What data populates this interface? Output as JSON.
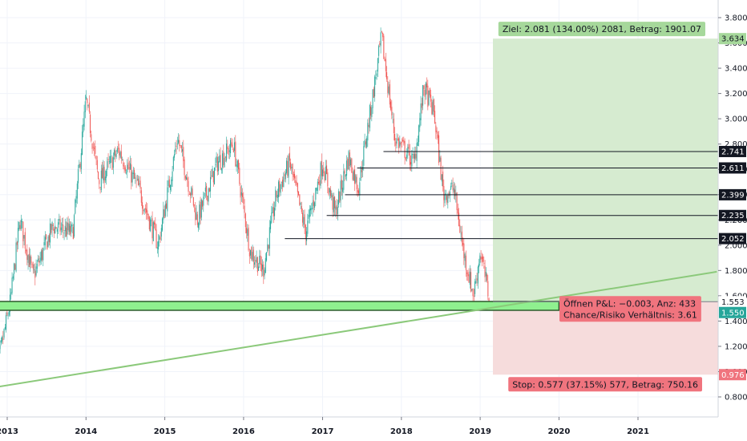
{
  "chart_data": {
    "type": "candlestick",
    "x_axis": {
      "labels": [
        "2013",
        "2014",
        "2015",
        "2016",
        "2017",
        "2018",
        "2019",
        "2020",
        "2021"
      ]
    },
    "y_axis": {
      "ticks": [
        "3.800",
        "3.600",
        "3.400",
        "3.200",
        "3.000",
        "2.800",
        "2.600",
        "2.400",
        "2.200",
        "2.000",
        "1.800",
        "1.600",
        "1.400",
        "1.200",
        "1.000",
        "0.800"
      ],
      "range": [
        0.7,
        3.85
      ]
    },
    "price_path": [
      [
        "2012-11-01",
        0.9
      ],
      [
        "2013-01-15",
        1.55
      ],
      [
        "2013-03-01",
        2.2
      ],
      [
        "2013-05-01",
        1.75
      ],
      [
        "2013-08-01",
        2.15
      ],
      [
        "2013-11-01",
        2.1
      ],
      [
        "2014-01-01",
        3.15
      ],
      [
        "2014-03-01",
        2.5
      ],
      [
        "2014-06-01",
        2.75
      ],
      [
        "2014-09-01",
        2.45
      ],
      [
        "2014-12-01",
        2.0
      ],
      [
        "2015-03-01",
        2.85
      ],
      [
        "2015-06-01",
        2.2
      ],
      [
        "2015-09-01",
        2.65
      ],
      [
        "2015-11-15",
        2.8
      ],
      [
        "2016-02-01",
        1.95
      ],
      [
        "2016-04-01",
        1.8
      ],
      [
        "2016-06-01",
        2.4
      ],
      [
        "2016-08-01",
        2.65
      ],
      [
        "2016-10-15",
        2.1
      ],
      [
        "2017-01-01",
        2.65
      ],
      [
        "2017-03-01",
        2.25
      ],
      [
        "2017-05-01",
        2.7
      ],
      [
        "2017-06-15",
        2.45
      ],
      [
        "2017-09-01",
        3.3
      ],
      [
        "2017-10-01",
        3.65
      ],
      [
        "2017-12-01",
        2.85
      ],
      [
        "2018-03-01",
        2.65
      ],
      [
        "2018-04-15",
        3.25
      ],
      [
        "2018-06-01",
        3.05
      ],
      [
        "2018-07-15",
        2.4
      ],
      [
        "2018-09-01",
        2.45
      ],
      [
        "2018-10-15",
        1.95
      ],
      [
        "2018-12-01",
        1.6
      ],
      [
        "2019-01-01",
        1.95
      ],
      [
        "2019-02-15",
        1.55
      ]
    ],
    "horizontal_levels": [
      {
        "value": 2.741,
        "label": "2.741",
        "from": "2017-10-10"
      },
      {
        "value": 2.611,
        "label": "2.611",
        "from": "2017-06-10"
      },
      {
        "value": 2.399,
        "label": "2.399",
        "from": "2017-04-15"
      },
      {
        "value": 2.235,
        "label": "2.235",
        "from": "2017-01-20"
      },
      {
        "value": 2.052,
        "label": "2.052",
        "from": "2016-07-10"
      }
    ],
    "trendline": {
      "from": [
        "2012-11-20",
        0.88
      ],
      "to": [
        "2022-01-01",
        1.79
      ],
      "color": "#8bc97a"
    },
    "support_zone": {
      "low": 1.485,
      "high": 1.555,
      "from": "2012-11-20",
      "to": "2020-01-01",
      "color": "#8ff08f"
    },
    "position": {
      "entry": 1.553,
      "target": 3.634,
      "stop": 0.976,
      "from": "2019-03-01",
      "to": "2022-01-01",
      "current": 1.55,
      "target_label": "Ziel: 2.081 (134.00%) 2081, Betrag: 1901.07",
      "stop_label": "Stop: 0.577 (37.15%) 577, Betrag: 750.16",
      "pnl_label": "Öffnen P&L: −0.003, Anz: 433",
      "ratio_label": "Chance/Risiko Verhältnis: 3.61",
      "price_labels": {
        "target": "3.634",
        "entry": "1.553",
        "current": "1.550",
        "stop": "0.976"
      }
    },
    "colors": {
      "up": "#26a69a",
      "down": "#ef5350",
      "target_zone": "#d6ebd0",
      "stop_zone": "#f6dcdc",
      "target_tag": "#a6d89b",
      "stop_tag": "#f0747e",
      "current_tag": "#26a69a"
    }
  }
}
